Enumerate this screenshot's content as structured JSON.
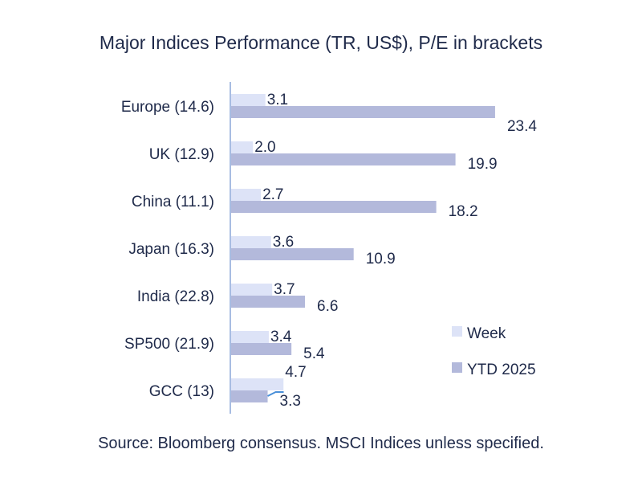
{
  "chart_data": {
    "type": "bar",
    "orientation": "horizontal",
    "title": "Major Indices Performance (TR, US$), P/E in brackets",
    "categories": [
      "Europe (14.6)",
      "UK (12.9)",
      "China (11.1)",
      "Japan (16.3)",
      "India (22.8)",
      "SP500 (21.9)",
      "GCC (13)"
    ],
    "series": [
      {
        "name": "Week",
        "values": [
          3.1,
          2.0,
          2.7,
          3.6,
          3.7,
          3.4,
          4.7
        ],
        "color": "#dde3f7"
      },
      {
        "name": "YTD 2025",
        "values": [
          23.4,
          19.9,
          18.2,
          10.9,
          6.6,
          5.4,
          3.3
        ],
        "color": "#b3b9db"
      }
    ],
    "xlim": [
      0,
      30
    ],
    "legend_position": "right",
    "grid": false
  },
  "source": "Source: Bloomberg consensus. MSCI Indices unless specified.",
  "colors": {
    "axis": "#a8bde2",
    "text": "#1f2a4a",
    "leader": "#4a90d9"
  }
}
